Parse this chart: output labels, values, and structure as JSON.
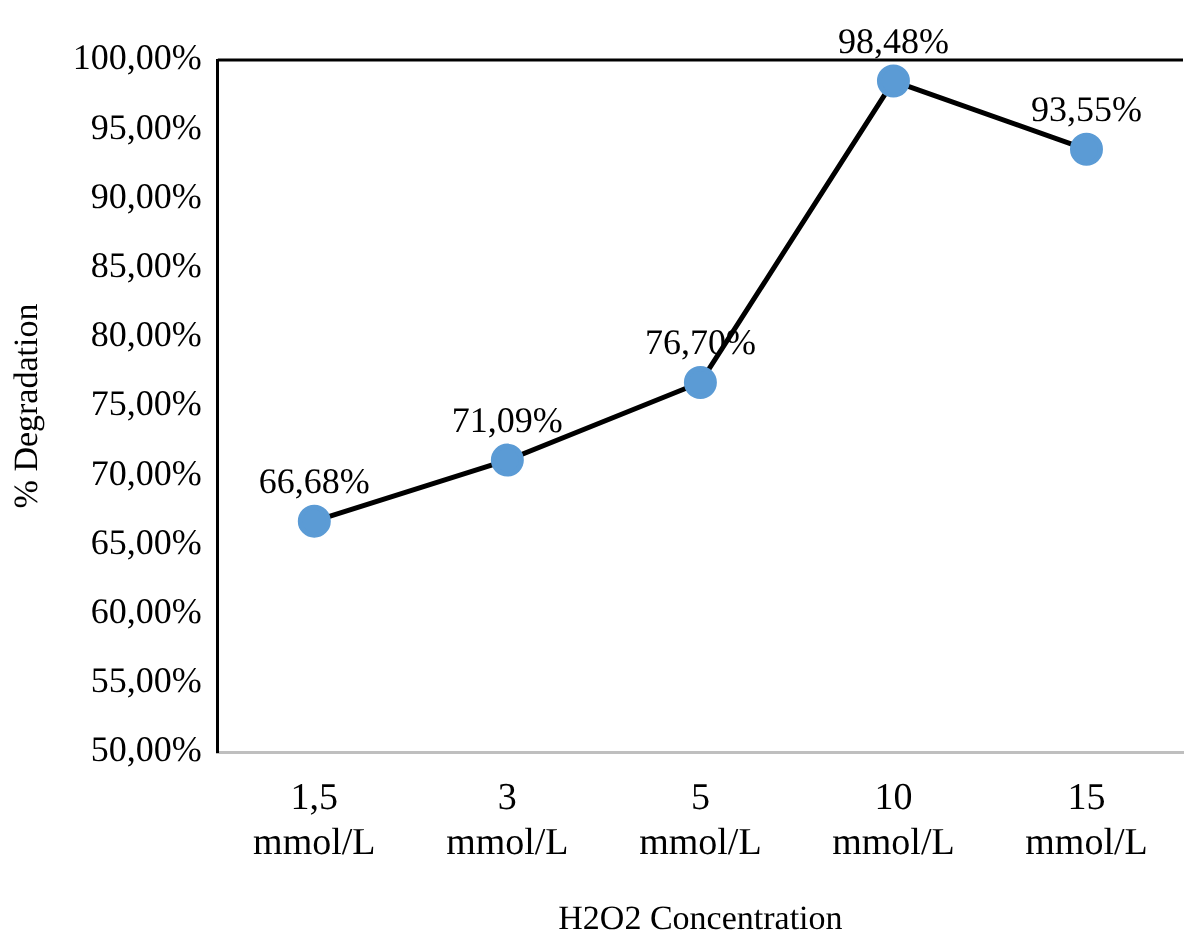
{
  "chart_data": {
    "type": "line",
    "xlabel": "H2O2 Concentration",
    "ylabel": "% Degradation",
    "categories": [
      "1,5 mmol/L",
      "3 mmol/L",
      "5 mmol/L",
      "10 mmol/L",
      "15 mmol/L"
    ],
    "series": [
      {
        "color": "#5b9bd5",
        "values": [
          66.68,
          71.09,
          76.7,
          98.48,
          93.55
        ],
        "value_labels": [
          "66,68%",
          "71,09%",
          "76,70%",
          "98,48%",
          "93,55%"
        ]
      }
    ],
    "ylim": [
      50,
      100
    ],
    "yticks": [
      {
        "value": 50,
        "label": "50,00%"
      },
      {
        "value": 55,
        "label": "55,00%"
      },
      {
        "value": 60,
        "label": "60,00%"
      },
      {
        "value": 65,
        "label": "65,00%"
      },
      {
        "value": 70,
        "label": "70,00%"
      },
      {
        "value": 75,
        "label": "75,00%"
      },
      {
        "value": 80,
        "label": "80,00%"
      },
      {
        "value": 85,
        "label": "85,00%"
      },
      {
        "value": 90,
        "label": "90,00%"
      },
      {
        "value": 95,
        "label": "95,00%"
      },
      {
        "value": 100,
        "label": "100,00%"
      }
    ],
    "grid": false,
    "legend": false,
    "marker": "circle",
    "line_style": "solid"
  }
}
